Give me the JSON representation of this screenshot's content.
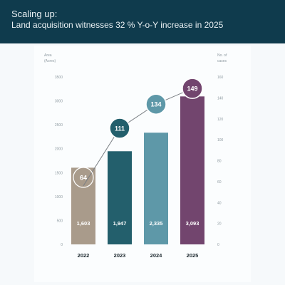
{
  "header": {
    "line1": "Scaling up:",
    "line2": "Land acquisition witnesses 32 % Y-o-Y increase in 2025"
  },
  "chart_data": {
    "type": "bar",
    "categories": [
      "2022",
      "2023",
      "2024",
      "2025"
    ],
    "series": [
      {
        "name": "Area (Acres)",
        "values": [
          1603,
          1947,
          2335,
          3093
        ],
        "value_labels": [
          "1,603",
          "1,947",
          "2,335",
          "3,093"
        ],
        "colors": [
          "#a99b8b",
          "#235f6c",
          "#5e98a8",
          "#72456e"
        ]
      },
      {
        "name": "No. of cases",
        "values": [
          64,
          111,
          134,
          149
        ],
        "value_labels": [
          "64",
          "111",
          "134",
          "149"
        ],
        "colors": [
          "#a99b8b",
          "#235f6c",
          "#5e98a8",
          "#72456e"
        ]
      }
    ],
    "y_left": {
      "label_line1": "Area",
      "label_line2": "(Acres)",
      "ticks": [
        "0",
        "500",
        "1000",
        "1500",
        "2000",
        "2500",
        "3000",
        "3500"
      ],
      "ylim": [
        0,
        3500
      ]
    },
    "y_right": {
      "label_line1": "No. of",
      "label_line2": "cases",
      "ticks": [
        "0",
        "20",
        "40",
        "60",
        "80",
        "100",
        "120",
        "140",
        "160"
      ],
      "ylim": [
        0,
        160
      ]
    },
    "grid": false,
    "line_color": "#7a7f84"
  }
}
